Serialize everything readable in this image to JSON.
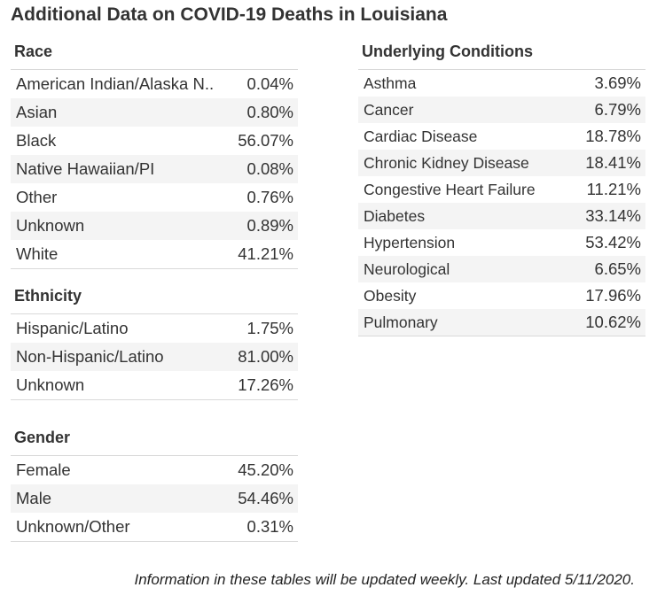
{
  "title": "Additional Data on COVID-19 Deaths in Louisiana",
  "race": {
    "heading": "Race",
    "rows": [
      {
        "label": "American Indian/Alaska N..",
        "value": "0.04%"
      },
      {
        "label": "Asian",
        "value": "0.80%"
      },
      {
        "label": "Black",
        "value": "56.07%"
      },
      {
        "label": "Native Hawaiian/PI",
        "value": "0.08%"
      },
      {
        "label": "Other",
        "value": "0.76%"
      },
      {
        "label": "Unknown",
        "value": "0.89%"
      },
      {
        "label": "White",
        "value": "41.21%"
      }
    ]
  },
  "ethnicity": {
    "heading": "Ethnicity",
    "rows": [
      {
        "label": "Hispanic/Latino",
        "value": "1.75%"
      },
      {
        "label": "Non-Hispanic/Latino",
        "value": "81.00%"
      },
      {
        "label": "Unknown",
        "value": "17.26%"
      }
    ]
  },
  "gender": {
    "heading": "Gender",
    "rows": [
      {
        "label": "Female",
        "value": "45.20%"
      },
      {
        "label": "Male",
        "value": "54.46%"
      },
      {
        "label": "Unknown/Other",
        "value": "0.31%"
      }
    ]
  },
  "conditions": {
    "heading": "Underlying Conditions",
    "rows": [
      {
        "label": "Asthma",
        "value": "3.69%"
      },
      {
        "label": "Cancer",
        "value": "6.79%"
      },
      {
        "label": "Cardiac Disease",
        "value": "18.78%"
      },
      {
        "label": "Chronic Kidney Disease",
        "value": "18.41%"
      },
      {
        "label": "Congestive Heart Failure",
        "value": "11.21%"
      },
      {
        "label": "Diabetes",
        "value": "33.14%"
      },
      {
        "label": "Hypertension",
        "value": "53.42%"
      },
      {
        "label": "Neurological",
        "value": "6.65%"
      },
      {
        "label": "Obesity",
        "value": "17.96%"
      },
      {
        "label": "Pulmonary",
        "value": "10.62%"
      }
    ]
  },
  "footer": "Information in these tables will be updated weekly. Last updated 5/11/2020."
}
